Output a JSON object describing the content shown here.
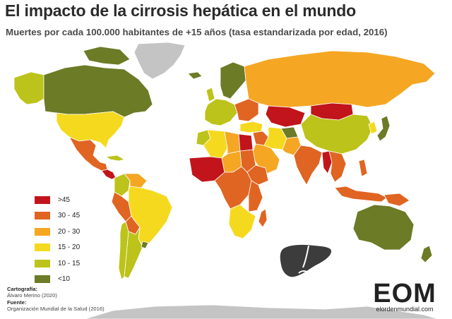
{
  "title": "El impacto de la cirrosis hepática en el mundo",
  "subtitle": "Muertes por cada 100.000 habitantes de +15 años (tasa estandarizada por edad, 2016)",
  "legend": {
    "items": [
      {
        "label": ">45",
        "color": "#c1151b"
      },
      {
        "label": "30 - 45",
        "color": "#e06422"
      },
      {
        "label": "20 - 30",
        "color": "#f5a623"
      },
      {
        "label": "15 - 20",
        "color": "#f5d91f"
      },
      {
        "label": "10 - 15",
        "color": "#bcc31a"
      },
      {
        "label": "<10",
        "color": "#6b7b26"
      }
    ]
  },
  "map_colors": {
    "no_data": "#c4c4c4",
    "water": "#ffffff",
    "border": "#ffffff"
  },
  "regions": {
    "canada": "<10",
    "alaska": "10 - 15",
    "usa": "15 - 20",
    "mexico": "30 - 45",
    "central_america": ">45",
    "cuba": "10 - 15",
    "colombia": "10 - 15",
    "venezuela": "20 - 30",
    "peru": "30 - 45",
    "brazil": "15 - 20",
    "bolivia": "30 - 45",
    "argentina": "10 - 15",
    "chile": "10 - 15",
    "uruguay": "<10",
    "greenland": "no data",
    "iceland": "<10",
    "scandinavia": "<10",
    "western_europe": "10 - 15",
    "eastern_europe": "30 - 45",
    "russia": "20 - 30",
    "kazakhstan": ">45",
    "mongolia": ">45",
    "china": "10 - 15",
    "japan": "<10",
    "korea": "15 - 20",
    "turkey": "15 - 20",
    "iran": "15 - 20",
    "arabia": "20 - 30",
    "iraq": "30 - 45",
    "egypt": ">45",
    "libya": "20 - 30",
    "algeria": "15 - 20",
    "morocco": "10 - 15",
    "west_africa": ">45",
    "sahel": "20 - 30",
    "sudan": "30 - 45",
    "ethiopia": "30 - 45",
    "central_africa": "30 - 45",
    "east_africa": "30 - 45",
    "southern_africa": "15 - 20",
    "madagascar": "30 - 45",
    "india": "30 - 45",
    "pakistan": "20 - 30",
    "afghanistan": "<10",
    "myanmar": ">45",
    "southeast_asia": "30 - 45",
    "indonesia": "30 - 45",
    "papua": "30 - 45",
    "australia": "<10",
    "new_zealand": "<10",
    "antarctica": "no data"
  },
  "credits": {
    "cartography_head": "Cartografía:",
    "cartography": "Álvaro Merino (2020)",
    "source_head": "Fuente:",
    "source": "Organización Mundial de la Salud (2016)"
  },
  "logo": {
    "mark": "EOM",
    "sub": "elordenmundial.com"
  },
  "liver_icon": "liver-icon"
}
